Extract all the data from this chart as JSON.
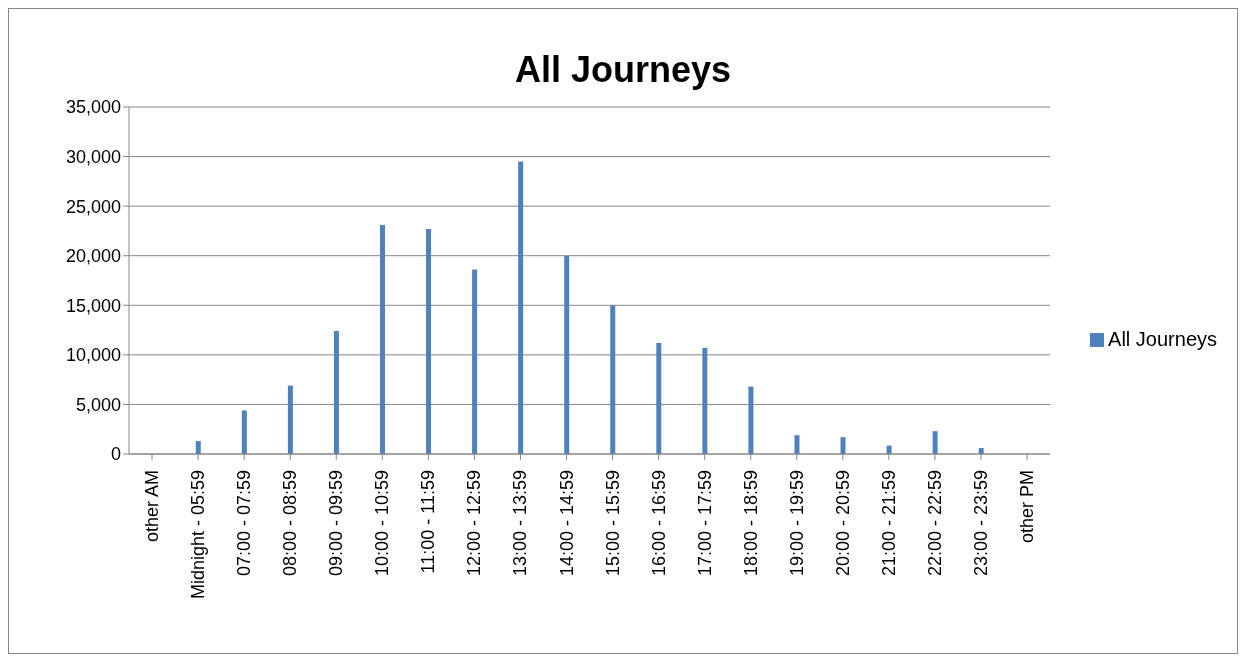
{
  "chart_data": {
    "type": "bar",
    "title": "All Journeys",
    "categories": [
      "other AM",
      "Midnight - 05:59",
      "07:00 - 07:59",
      "08:00 - 08:59",
      "09:00 - 09:59",
      "10:00 - 10:59",
      "11:00 - 11:59",
      "12:00 - 12:59",
      "13:00 - 13:59",
      "14:00 - 14:59",
      "15:00 - 15:59",
      "16:00 - 16:59",
      "17:00 - 17:59",
      "18:00 - 18:59",
      "19:00 - 19:59",
      "20:00 - 20:59",
      "21:00 - 21:59",
      "22:00 - 22:59",
      "23:00 - 23:59",
      "other PM"
    ],
    "series": [
      {
        "name": "All Journeys",
        "color": "#4f81bd",
        "values": [
          0,
          1300,
          4400,
          6900,
          12400,
          23100,
          22700,
          18600,
          29500,
          20000,
          15000,
          11200,
          10700,
          6800,
          1900,
          1700,
          850,
          2300,
          600,
          0
        ]
      }
    ],
    "ylim": [
      0,
      35000
    ],
    "yticks": [
      {
        "value": 0,
        "label": "0"
      },
      {
        "value": 5000,
        "label": "5,000"
      },
      {
        "value": 10000,
        "label": "10,000"
      },
      {
        "value": 15000,
        "label": "15,000"
      },
      {
        "value": 20000,
        "label": "20,000"
      },
      {
        "value": 25000,
        "label": "25,000"
      },
      {
        "value": 30000,
        "label": "30,000"
      },
      {
        "value": 35000,
        "label": "35,000"
      }
    ],
    "grid": "y",
    "legend": "right"
  }
}
